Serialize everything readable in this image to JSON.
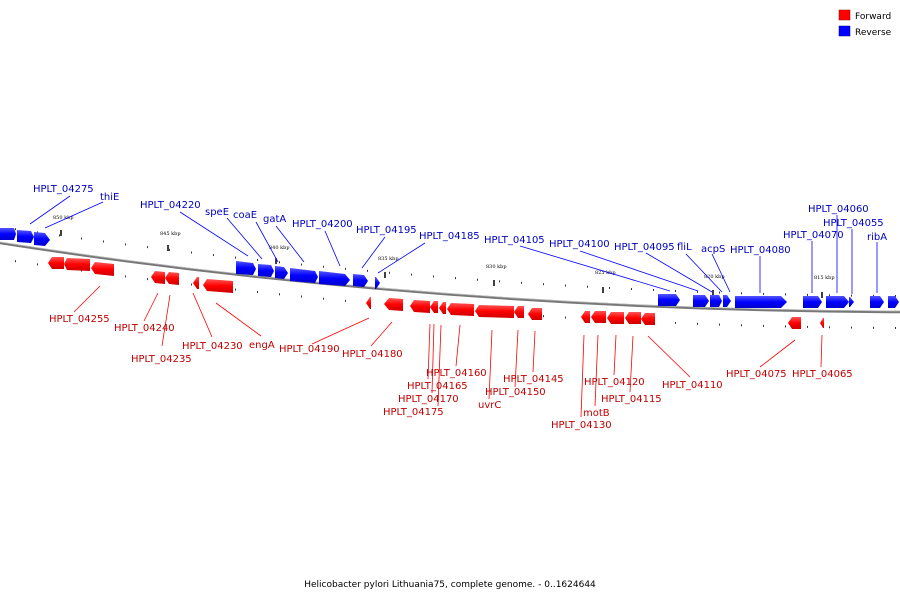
{
  "legend": {
    "forward": {
      "label": "Forward",
      "color": "#ff0000"
    },
    "reverse": {
      "label": "Reverse",
      "color": "#0000ff"
    }
  },
  "caption": "Helicobacter pylori Lithuania75, complete genome. - 0..1624644",
  "ticks": [
    {
      "label": "850 kbp"
    },
    {
      "label": "845 kbp"
    },
    {
      "label": "840 kbp"
    },
    {
      "label": "835 kbp"
    },
    {
      "label": "830 kbp"
    },
    {
      "label": "825 kbp"
    },
    {
      "label": "820 kbp"
    },
    {
      "label": "815 kbp"
    }
  ],
  "forward_genes": [
    "HPLT_04255",
    "HPLT_04240",
    "HPLT_04235",
    "HPLT_04230",
    "engA",
    "HPLT_04190",
    "HPLT_04180",
    "HPLT_04165",
    "HPLT_04170",
    "HPLT_04175",
    "HPLT_04160",
    "uvrC",
    "HPLT_04150",
    "HPLT_04145",
    "HPLT_04130",
    "motB",
    "HPLT_04120",
    "HPLT_04115",
    "HPLT_04110",
    "HPLT_04075",
    "HPLT_04065"
  ],
  "reverse_genes": [
    "HPLT_04275",
    "thiE",
    "HPLT_04220",
    "speE",
    "coaE",
    "gatA",
    "HPLT_04200",
    "HPLT_04195",
    "HPLT_04185",
    "HPLT_04105",
    "HPLT_04100",
    "HPLT_04095",
    "fliL",
    "acpS",
    "HPLT_04080",
    "HPLT_04070",
    "HPLT_04060",
    "HPLT_04055",
    "ribA"
  ]
}
